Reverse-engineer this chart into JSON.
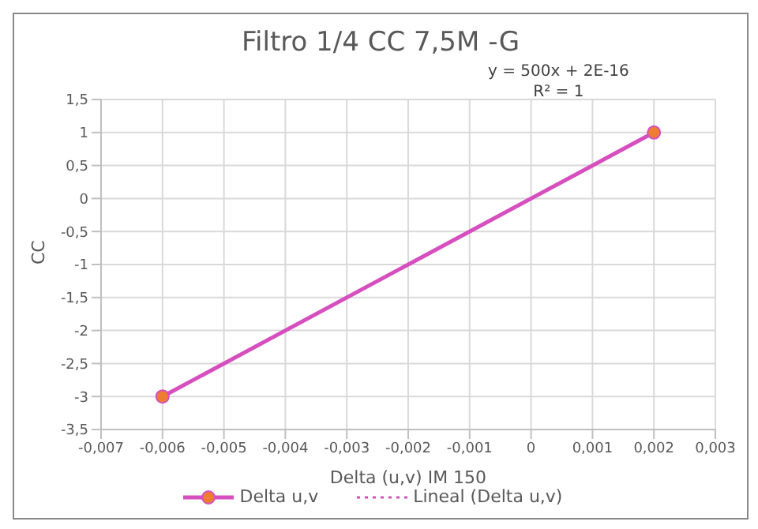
{
  "chart_data": {
    "type": "line",
    "title": "Filtro 1/4 CC 7,5M  -G",
    "xlabel": "Delta (u,v) IM 150",
    "ylabel": "CC",
    "annotations": [
      "y = 500x + 2E-16",
      "R² = 1"
    ],
    "series": [
      {
        "name": "Delta u,v",
        "color": "#d64fbf",
        "marker": "circle",
        "line_style": "solid",
        "x": [
          -0.006,
          0.002
        ],
        "values": [
          -3,
          1
        ]
      },
      {
        "name": "Lineal (Delta u,v)",
        "color": "#d64fbf",
        "marker": "none",
        "line_style": "dotted"
      }
    ],
    "xlim": [
      -0.007,
      0.003
    ],
    "xticks": [
      {
        "value": -0.007,
        "label": "-0,007"
      },
      {
        "value": -0.006,
        "label": "-0,006"
      },
      {
        "value": -0.005,
        "label": "-0,005"
      },
      {
        "value": -0.004,
        "label": "-0,004"
      },
      {
        "value": -0.003,
        "label": "-0,003"
      },
      {
        "value": -0.002,
        "label": "-0,002"
      },
      {
        "value": -0.001,
        "label": "-0,001"
      },
      0,
      {
        "value": 0.001,
        "label": "0,001"
      },
      {
        "value": 0.002,
        "label": "0,002"
      },
      {
        "value": 0.003,
        "label": "0,003"
      }
    ],
    "ylim": [
      -3.5,
      1.5
    ],
    "yticks": [
      {
        "value": -3.5,
        "label": "-3,5"
      },
      -3,
      {
        "value": -2.5,
        "label": "-2,5"
      },
      -2,
      {
        "value": -1.5,
        "label": "-1,5"
      },
      -1,
      {
        "value": -0.5,
        "label": "-0,5"
      },
      0,
      {
        "value": 0.5,
        "label": "0,5"
      },
      1,
      {
        "value": 1.5,
        "label": "1,5"
      }
    ],
    "grid": true,
    "legend": "bottom"
  }
}
